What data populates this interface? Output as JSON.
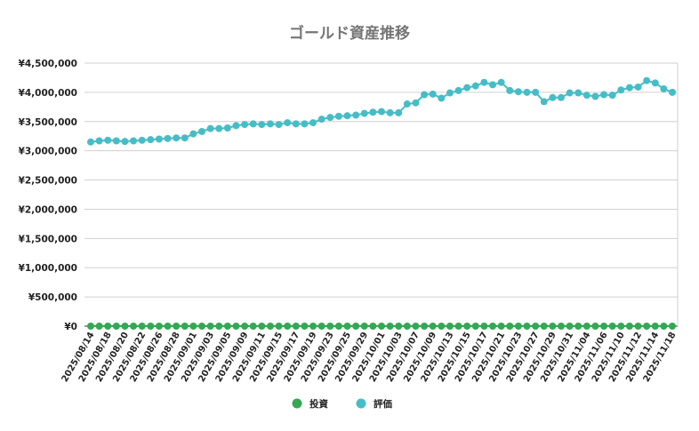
{
  "chart_data": {
    "type": "line",
    "title": "ゴールド資産推移",
    "xlabel": "",
    "ylabel": "",
    "ylim": [
      0,
      4500000
    ],
    "yticks": [
      0,
      500000,
      1000000,
      1500000,
      2000000,
      2500000,
      3000000,
      3500000,
      4000000,
      4500000
    ],
    "ytick_labels": [
      "¥0",
      "¥500,000",
      "¥1,000,000",
      "¥1,500,000",
      "¥2,000,000",
      "¥2,500,000",
      "¥3,000,000",
      "¥3,500,000",
      "¥4,000,000",
      "¥4,500,000"
    ],
    "grid": true,
    "legend": "bottom",
    "x": [
      "2025/08/14",
      "2025/08/15",
      "2025/08/18",
      "2025/08/19",
      "2025/08/20",
      "2025/08/21",
      "2025/08/22",
      "2025/08/25",
      "2025/08/26",
      "2025/08/27",
      "2025/08/28",
      "2025/08/29",
      "2025/09/01",
      "2025/09/02",
      "2025/09/03",
      "2025/09/04",
      "2025/09/05",
      "2025/09/08",
      "2025/09/09",
      "2025/09/10",
      "2025/09/11",
      "2025/09/12",
      "2025/09/15",
      "2025/09/16",
      "2025/09/17",
      "2025/09/18",
      "2025/09/19",
      "2025/09/22",
      "2025/09/23",
      "2025/09/24",
      "2025/09/25",
      "2025/09/26",
      "2025/09/29",
      "2025/09/30",
      "2025/10/01",
      "2025/10/02",
      "2025/10/03",
      "2025/10/06",
      "2025/10/07",
      "2025/10/08",
      "2025/10/09",
      "2025/10/10",
      "2025/10/13",
      "2025/10/14",
      "2025/10/15",
      "2025/10/16",
      "2025/10/17",
      "2025/10/20",
      "2025/10/21",
      "2025/10/22",
      "2025/10/23",
      "2025/10/24",
      "2025/10/27",
      "2025/10/28",
      "2025/10/29",
      "2025/10/30",
      "2025/10/31",
      "2025/11/03",
      "2025/11/04",
      "2025/11/05",
      "2025/11/06",
      "2025/11/07",
      "2025/11/10",
      "2025/11/11",
      "2025/11/12",
      "2025/11/13",
      "2025/11/14",
      "2025/11/17",
      "2025/11/18"
    ],
    "xtick_labels": [
      "2025/08/14",
      "2025/08/18",
      "2025/08/20",
      "2025/08/22",
      "2025/08/26",
      "2025/08/28",
      "2025/09/01",
      "2025/09/03",
      "2025/09/05",
      "2025/09/09",
      "2025/09/11",
      "2025/09/15",
      "2025/09/17",
      "2025/09/19",
      "2025/09/23",
      "2025/09/25",
      "2025/09/29",
      "2025/10/01",
      "2025/10/03",
      "2025/10/07",
      "2025/10/09",
      "2025/10/13",
      "2025/10/15",
      "2025/10/17",
      "2025/10/21",
      "2025/10/23",
      "2025/10/27",
      "2025/10/29",
      "2025/10/31",
      "2025/11/04",
      "2025/11/06",
      "2025/11/10",
      "2025/11/12",
      "2025/11/14",
      "2025/11/18"
    ],
    "series": [
      {
        "name": "投資",
        "color": "#34a853",
        "values": [
          0,
          0,
          0,
          0,
          0,
          0,
          0,
          0,
          0,
          0,
          0,
          0,
          0,
          0,
          0,
          0,
          0,
          0,
          0,
          0,
          0,
          0,
          0,
          0,
          0,
          0,
          0,
          0,
          0,
          0,
          0,
          0,
          0,
          0,
          0,
          0,
          0,
          0,
          0,
          0,
          0,
          0,
          0,
          0,
          0,
          0,
          0,
          0,
          0,
          0,
          0,
          0,
          0,
          0,
          0,
          0,
          0,
          0,
          0,
          0,
          0,
          0,
          0,
          0,
          0,
          0,
          0,
          0,
          0
        ]
      },
      {
        "name": "評価",
        "color": "#46bdc6",
        "values": [
          3150000,
          3170000,
          3180000,
          3170000,
          3160000,
          3170000,
          3180000,
          3190000,
          3200000,
          3210000,
          3220000,
          3220000,
          3290000,
          3330000,
          3380000,
          3380000,
          3390000,
          3430000,
          3450000,
          3460000,
          3450000,
          3460000,
          3450000,
          3480000,
          3460000,
          3460000,
          3480000,
          3540000,
          3570000,
          3590000,
          3600000,
          3610000,
          3640000,
          3660000,
          3670000,
          3650000,
          3650000,
          3800000,
          3820000,
          3960000,
          3970000,
          3900000,
          3990000,
          4030000,
          4080000,
          4110000,
          4170000,
          4130000,
          4170000,
          4030000,
          4010000,
          4000000,
          4000000,
          3840000,
          3910000,
          3910000,
          3990000,
          3990000,
          3950000,
          3930000,
          3960000,
          3950000,
          4040000,
          4080000,
          4090000,
          4200000,
          4160000,
          4060000,
          4000000
        ]
      }
    ]
  }
}
